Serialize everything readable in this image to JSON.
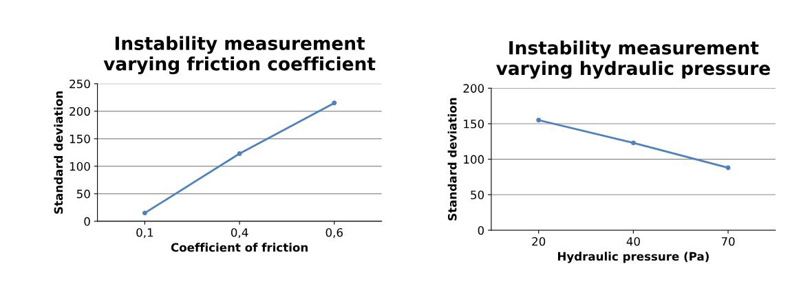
{
  "chart_data": [
    {
      "type": "line",
      "title": "Instability measurement\nvarying friction coefficient",
      "xlabel": "Coefficient of friction",
      "ylabel": "Standard deviation",
      "categories": [
        "0,1",
        "0,4",
        "0,6"
      ],
      "series": [
        {
          "color": "#4f81bd",
          "values": [
            15,
            123,
            215
          ]
        }
      ],
      "ylim": [
        0,
        250
      ],
      "yticks": [
        0,
        50,
        100,
        150,
        200,
        250
      ],
      "grid": "y",
      "marker": "circle",
      "legend": false
    },
    {
      "type": "line",
      "title": "Instability measurement\nvarying hydraulic pressure",
      "xlabel": "Hydraulic pressure (Pa)",
      "ylabel": "Standard deviation",
      "categories": [
        "20",
        "40",
        "70"
      ],
      "series": [
        {
          "color": "#4f81bd",
          "values": [
            155,
            123,
            88
          ]
        }
      ],
      "ylim": [
        0,
        200
      ],
      "yticks": [
        0,
        50,
        100,
        150,
        200
      ],
      "grid": "y",
      "marker": "circle",
      "legend": false
    }
  ]
}
